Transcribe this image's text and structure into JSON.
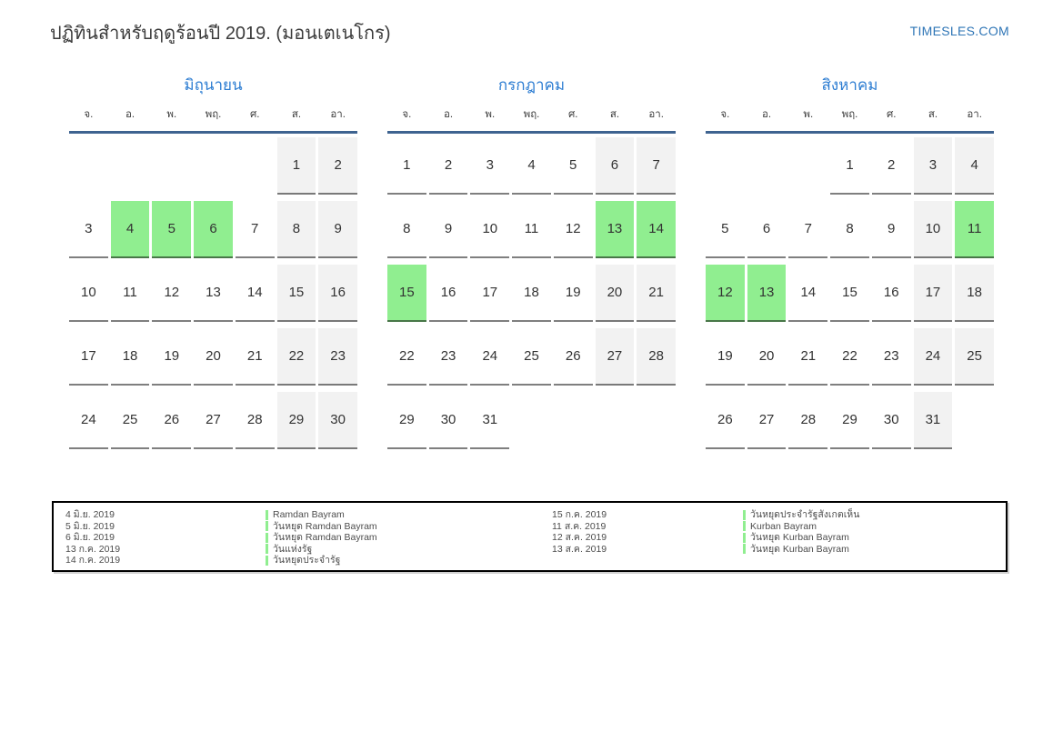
{
  "page": {
    "title": "ปฏิทินสำหรับฤดูร้อนปี 2019. (มอนเตเนโกร)",
    "site": "TIMESLES.COM"
  },
  "calendar": {
    "weekdays": [
      "จ.",
      "อ.",
      "พ.",
      "พฤ.",
      "ศ.",
      "ส.",
      "อา."
    ],
    "months": [
      {
        "name": "มิถุนายน",
        "holidays": [
          4,
          5,
          6
        ],
        "weeks": [
          [
            null,
            null,
            null,
            null,
            null,
            1,
            2
          ],
          [
            3,
            4,
            5,
            6,
            7,
            8,
            9
          ],
          [
            10,
            11,
            12,
            13,
            14,
            15,
            16
          ],
          [
            17,
            18,
            19,
            20,
            21,
            22,
            23
          ],
          [
            24,
            25,
            26,
            27,
            28,
            29,
            30
          ]
        ]
      },
      {
        "name": "กรกฎาคม",
        "holidays": [
          13,
          14,
          15
        ],
        "weeks": [
          [
            1,
            2,
            3,
            4,
            5,
            6,
            7
          ],
          [
            8,
            9,
            10,
            11,
            12,
            13,
            14
          ],
          [
            15,
            16,
            17,
            18,
            19,
            20,
            21
          ],
          [
            22,
            23,
            24,
            25,
            26,
            27,
            28
          ],
          [
            29,
            30,
            31,
            null,
            null,
            null,
            null
          ]
        ]
      },
      {
        "name": "สิงหาคม",
        "holidays": [
          11,
          12,
          13
        ],
        "weeks": [
          [
            null,
            null,
            null,
            1,
            2,
            3,
            4
          ],
          [
            5,
            6,
            7,
            8,
            9,
            10,
            11
          ],
          [
            12,
            13,
            14,
            15,
            16,
            17,
            18
          ],
          [
            19,
            20,
            21,
            22,
            23,
            24,
            25
          ],
          [
            26,
            27,
            28,
            29,
            30,
            31,
            null
          ]
        ]
      }
    ]
  },
  "legend": {
    "columns": [
      [
        {
          "date": "4 มิ.ย. 2019",
          "name": "Ramdan Bayram"
        },
        {
          "date": "5 มิ.ย. 2019",
          "name": "วันหยุด Ramdan Bayram"
        },
        {
          "date": "6 มิ.ย. 2019",
          "name": "วันหยุด Ramdan Bayram"
        },
        {
          "date": "13 ก.ค. 2019",
          "name": "วันแห่งรัฐ"
        },
        {
          "date": "14 ก.ค. 2019",
          "name": "วันหยุดประจำรัฐ"
        }
      ],
      [
        {
          "date": "15 ก.ค. 2019",
          "name": "วันหยุดประจำรัฐสังเกตเห็น"
        },
        {
          "date": "11 ส.ค. 2019",
          "name": "Kurban Bayram"
        },
        {
          "date": "12 ส.ค. 2019",
          "name": "วันหยุด Kurban Bayram"
        },
        {
          "date": "13 ส.ค. 2019",
          "name": "วันหยุด Kurban Bayram"
        }
      ]
    ]
  },
  "colors": {
    "holiday_green": "#90ee90",
    "weekend_gray": "#f2f2f2",
    "month_title_blue": "#2d7dd2",
    "header_line_blue": "#3e6390",
    "site_link_blue": "#2e75b6"
  }
}
